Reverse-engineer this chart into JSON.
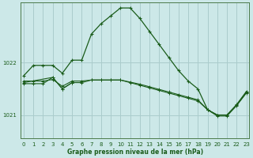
{
  "title": "Graphe pression niveau de la mer (hPa)",
  "background_color": "#cce8e8",
  "grid_color": "#aacccc",
  "line_color": "#1a5c1a",
  "x_ticks": [
    0,
    1,
    2,
    3,
    4,
    5,
    6,
    7,
    8,
    9,
    10,
    11,
    12,
    13,
    14,
    15,
    16,
    17,
    18,
    19,
    20,
    21,
    22,
    23
  ],
  "y_ticks": [
    1021,
    1022
  ],
  "ylim": [
    1020.55,
    1023.15
  ],
  "xlim": [
    -0.3,
    23.3
  ],
  "series1_x": [
    0,
    1,
    2,
    3,
    4,
    5,
    6,
    7,
    8,
    9,
    10,
    11,
    12,
    13,
    14,
    15,
    16,
    17,
    18,
    19,
    20,
    21,
    22,
    23
  ],
  "series1_y": [
    1021.75,
    1021.95,
    1021.95,
    1021.95,
    1021.8,
    1022.05,
    1022.05,
    1022.55,
    1022.75,
    1022.9,
    1023.05,
    1023.05,
    1022.85,
    1022.6,
    1022.35,
    1022.1,
    1021.85,
    1021.65,
    1021.5,
    1021.1,
    1021.0,
    1021.0,
    1021.2,
    1021.45
  ],
  "series2_x": [
    0,
    1,
    2,
    3,
    4,
    5,
    6,
    7,
    8,
    9,
    10,
    11,
    12,
    13,
    14,
    15,
    16,
    17,
    18,
    19,
    20,
    21,
    22,
    23
  ],
  "series2_y": [
    1021.6,
    1021.6,
    1021.6,
    1021.72,
    1021.5,
    1021.62,
    1021.62,
    1021.67,
    1021.67,
    1021.67,
    1021.67,
    1021.62,
    1021.57,
    1021.52,
    1021.47,
    1021.42,
    1021.37,
    1021.32,
    1021.27,
    1021.1,
    1020.98,
    1020.98,
    1021.18,
    1021.42
  ],
  "series3_x": [
    0,
    1,
    2,
    3,
    4,
    5,
    6,
    7,
    8,
    9,
    10,
    11,
    12,
    13,
    14,
    15,
    16,
    17,
    18,
    19,
    20,
    21,
    22,
    23
  ],
  "series3_y": [
    1021.65,
    1021.65,
    1021.65,
    1021.68,
    1021.55,
    1021.65,
    1021.65,
    1021.67,
    1021.67,
    1021.67,
    1021.67,
    1021.63,
    1021.59,
    1021.54,
    1021.49,
    1021.44,
    1021.39,
    1021.34,
    1021.29,
    1021.1,
    1021.0,
    1021.0,
    1021.19,
    1021.43
  ],
  "series4_x": [
    0,
    3,
    4,
    5
  ],
  "series4_y": [
    1021.62,
    1021.72,
    1021.5,
    1021.62
  ],
  "figwidth": 3.2,
  "figheight": 2.0,
  "dpi": 100
}
